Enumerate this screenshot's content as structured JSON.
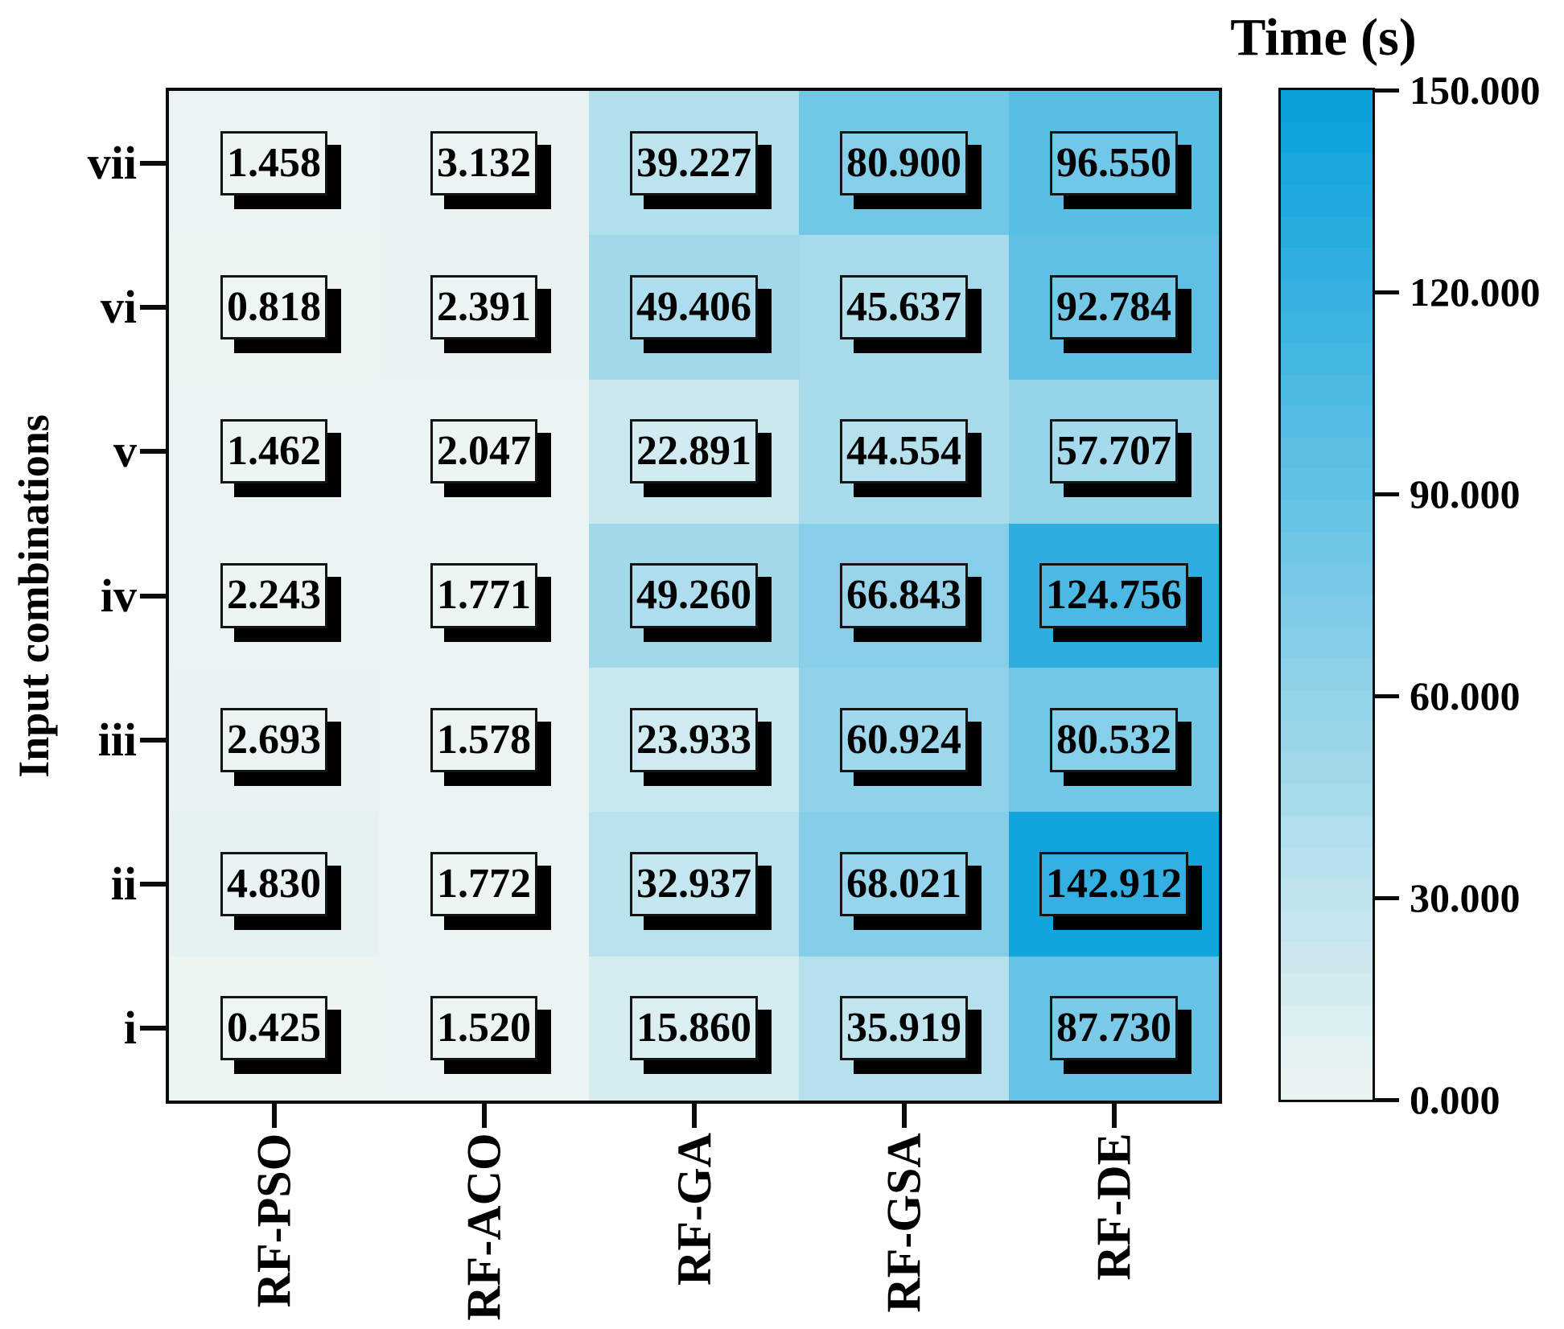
{
  "chart_data": {
    "type": "heatmap",
    "title": "Time (s)",
    "xlabel": "",
    "ylabel": "Input combinations",
    "columns": [
      "RF-PSO",
      "RF-ACO",
      "RF-GA",
      "RF-GSA",
      "RF-DE"
    ],
    "rows": [
      "vii",
      "vi",
      "v",
      "iv",
      "iii",
      "ii",
      "i"
    ],
    "values": [
      [
        1.458,
        3.132,
        39.227,
        80.9,
        96.55
      ],
      [
        0.818,
        2.391,
        49.406,
        45.637,
        92.784
      ],
      [
        1.462,
        2.047,
        22.891,
        44.554,
        57.707
      ],
      [
        2.243,
        1.771,
        49.26,
        66.843,
        124.756
      ],
      [
        2.693,
        1.578,
        23.933,
        60.924,
        80.532
      ],
      [
        4.83,
        1.772,
        32.937,
        68.021,
        142.912
      ],
      [
        0.425,
        1.52,
        15.86,
        35.919,
        87.73
      ]
    ],
    "value_labels": [
      [
        "1.458",
        "3.132",
        "39.227",
        "80.900",
        "96.550"
      ],
      [
        "0.818",
        "2.391",
        "49.406",
        "45.637",
        "92.784"
      ],
      [
        "1.462",
        "2.047",
        "22.891",
        "44.554",
        "57.707"
      ],
      [
        "2.243",
        "1.771",
        "49.260",
        "66.843",
        "124.756"
      ],
      [
        "2.693",
        "1.578",
        "23.933",
        "60.924",
        "80.532"
      ],
      [
        "4.830",
        "1.772",
        "32.937",
        "68.021",
        "142.912"
      ],
      [
        "0.425",
        "1.520",
        "15.860",
        "35.919",
        "87.730"
      ]
    ],
    "colorbar": {
      "title": "Time (s)",
      "min": 0,
      "max": 150,
      "tick_labels": [
        "150.000",
        "120.000",
        "90.000",
        "60.000",
        "30.000",
        "0.000"
      ],
      "color_low": "#edf5f2",
      "color_high": "#07a0db"
    },
    "layout": {
      "grid": "off",
      "colorbar_position": "right",
      "x_tick_rotation": 90
    }
  }
}
